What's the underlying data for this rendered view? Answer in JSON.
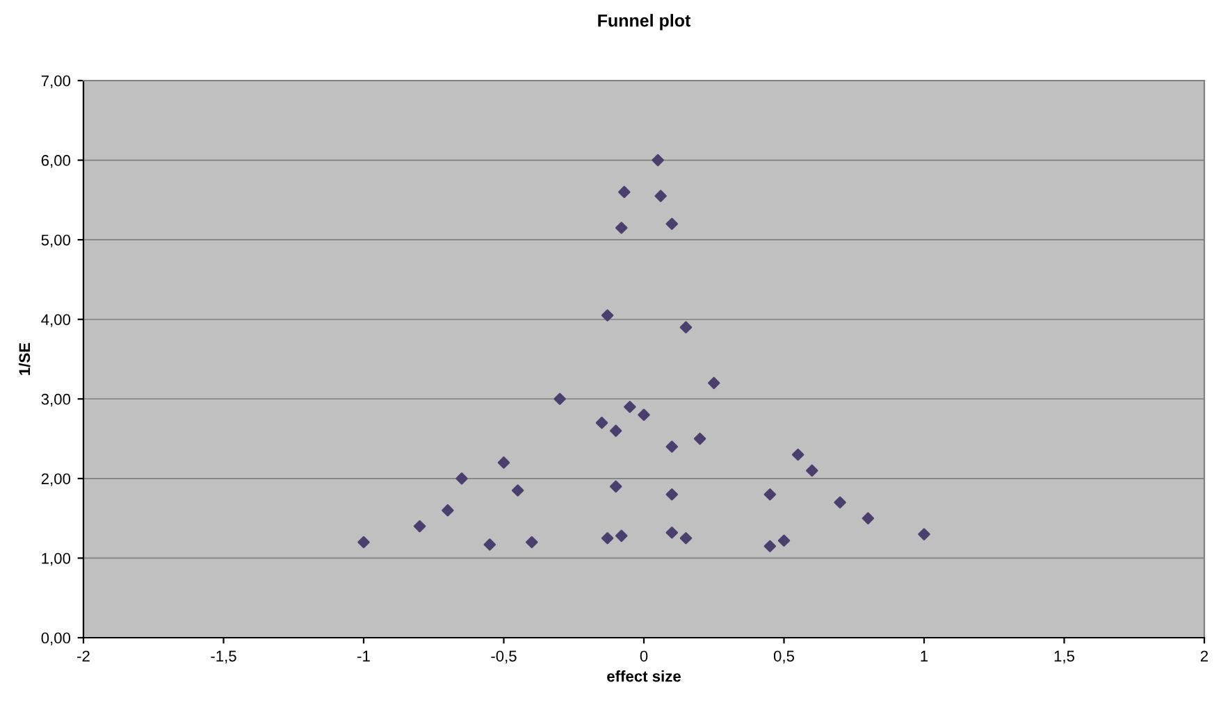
{
  "chart_data": {
    "type": "scatter",
    "title": "Funnel plot",
    "xlabel": "effect size",
    "ylabel": "1/SE",
    "x": [
      -1,
      -0.8,
      -0.7,
      -0.65,
      -0.55,
      -0.5,
      -0.45,
      -0.4,
      -0.3,
      -0.15,
      -0.13,
      -0.13,
      -0.1,
      -0.1,
      -0.08,
      -0.07,
      -0.08,
      -0.05,
      0,
      0.05,
      0.06,
      0.1,
      0.1,
      0.1,
      0.1,
      0.15,
      0.15,
      0.2,
      0.25,
      0.45,
      0.45,
      0.5,
      0.55,
      0.6,
      0.7,
      0.8,
      1.0
    ],
    "series": [
      {
        "color": "#4b3f6e",
        "values": [
          1.2,
          1.4,
          1.6,
          2.0,
          1.17,
          2.2,
          1.85,
          1.2,
          3.0,
          2.7,
          4.05,
          1.25,
          2.6,
          1.9,
          5.15,
          5.6,
          1.28,
          2.9,
          2.8,
          6.0,
          5.55,
          5.2,
          2.4,
          1.8,
          1.32,
          3.9,
          1.25,
          2.5,
          3.2,
          1.8,
          1.15,
          1.22,
          2.3,
          2.1,
          1.7,
          1.5,
          1.3
        ]
      }
    ],
    "marker": "diamond",
    "grid": "y",
    "xlim": [
      -2,
      2
    ],
    "ylim": [
      0,
      7
    ],
    "xticks": [
      -2,
      {
        "value": -1.5,
        "label": "-1,5"
      },
      -1,
      {
        "value": -0.5,
        "label": "-0,5"
      },
      0,
      {
        "value": 0.5,
        "label": "0,5"
      },
      1,
      {
        "value": 1.5,
        "label": "1,5"
      },
      2
    ],
    "yticks": [
      {
        "value": 0,
        "label": "0,00"
      },
      {
        "value": 1,
        "label": "1,00"
      },
      {
        "value": 2,
        "label": "2,00"
      },
      {
        "value": 3,
        "label": "3,00"
      },
      {
        "value": 4,
        "label": "4,00"
      },
      {
        "value": 5,
        "label": "5,00"
      },
      {
        "value": 6,
        "label": "6,00"
      },
      {
        "value": 7,
        "label": "7,00"
      }
    ]
  }
}
